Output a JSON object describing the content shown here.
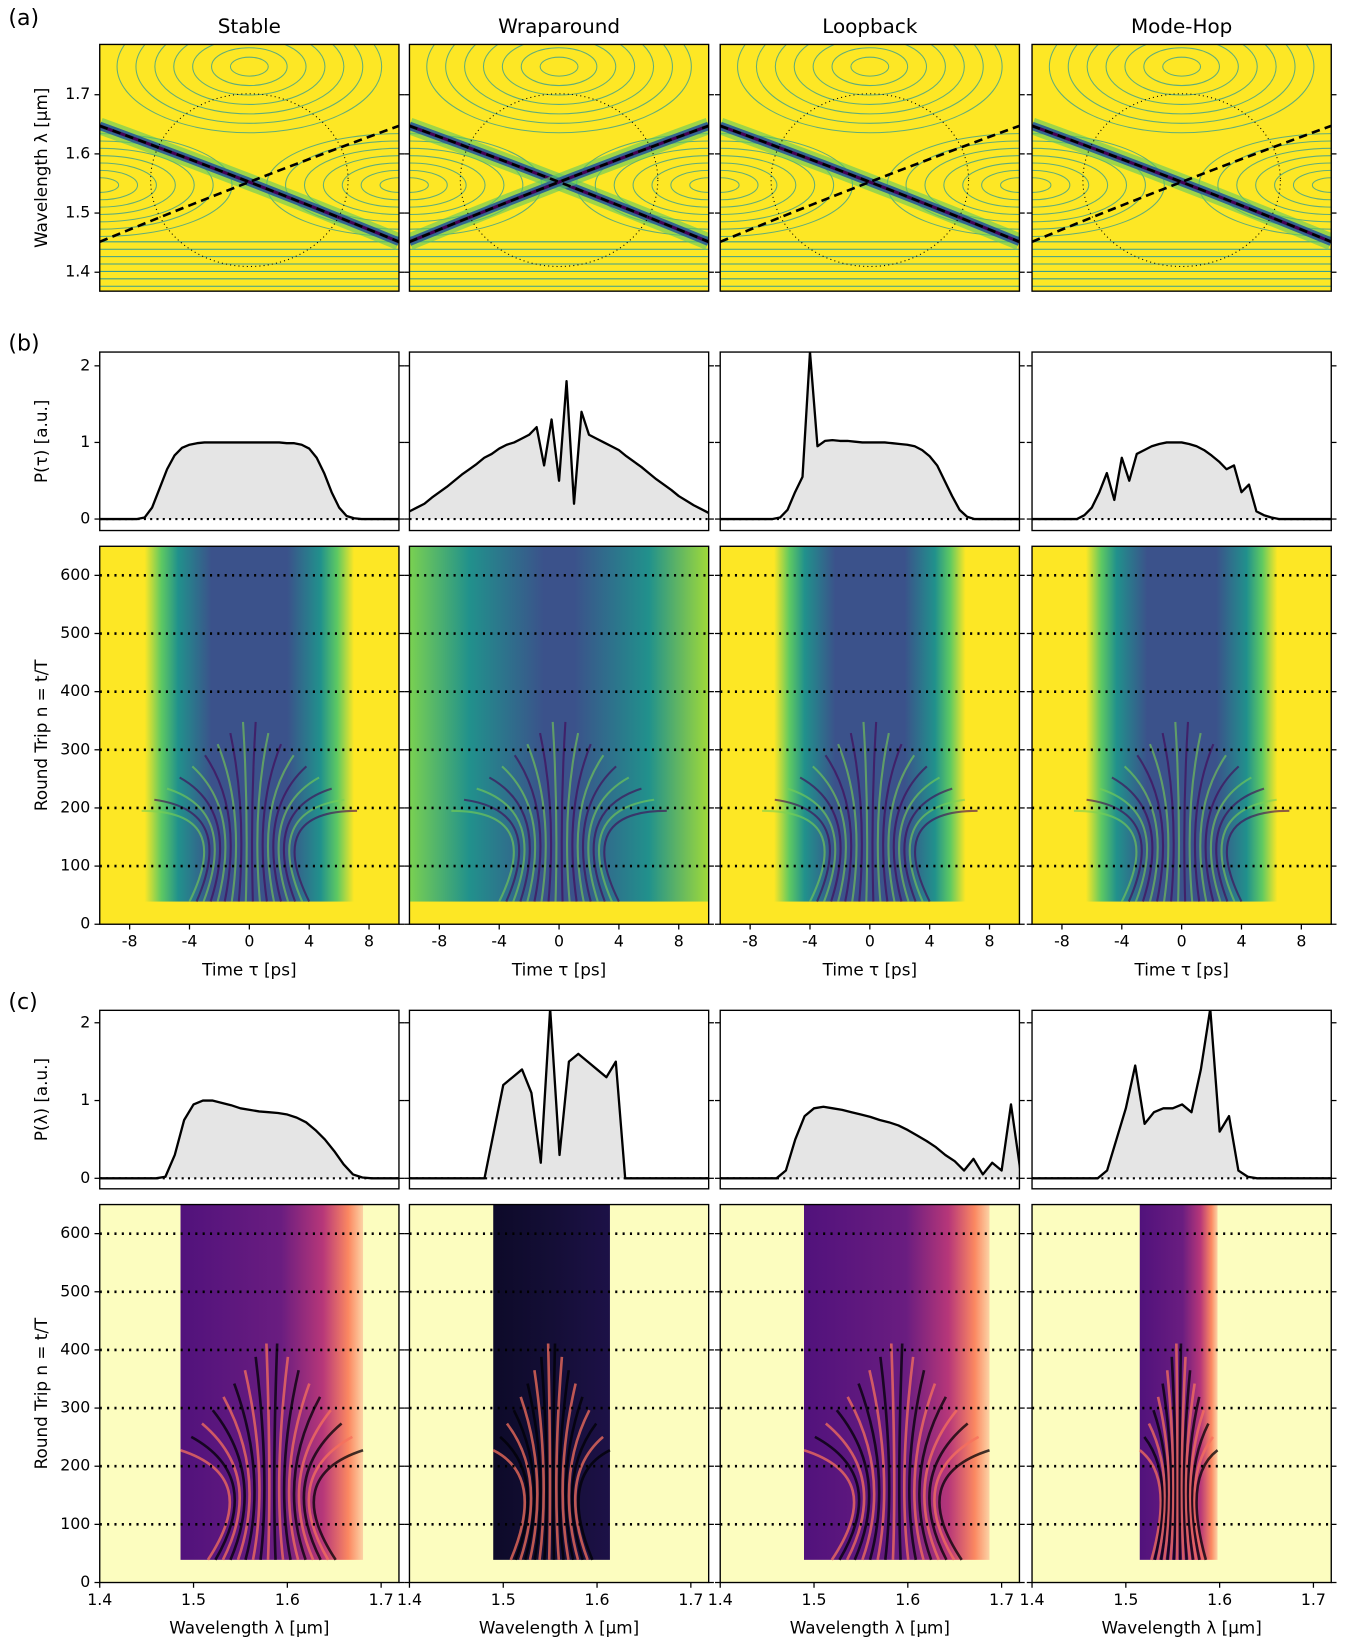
{
  "chart_data": [
    {
      "type": "heatmap",
      "label": "(a)",
      "titles": [
        "Stable",
        "Wraparound",
        "Loopback",
        "Mode-Hop"
      ],
      "ylabel": "Wavelength λ [μm]",
      "ylim": [
        1.368,
        1.785
      ],
      "yticks": [
        1.4,
        1.5,
        1.6,
        1.7
      ],
      "colormap": "viridis"
    },
    {
      "type": "line",
      "label": "(b)",
      "ylabel": "P(τ) [a.u.]",
      "xlim": [
        -10,
        10
      ],
      "ylim": [
        -0.15,
        2.18
      ],
      "yticks": [
        0,
        1,
        2
      ],
      "color": "#000000",
      "fill": "#e5e5e5",
      "x": [
        -10,
        -9.5,
        -9,
        -8.5,
        -8,
        -7.5,
        -7,
        -6.5,
        -6,
        -5.5,
        -5,
        -4.5,
        -4,
        -3.5,
        -3,
        -2.5,
        -2,
        -1.5,
        -1,
        -0.5,
        0,
        0.5,
        1,
        1.5,
        2,
        2.5,
        3,
        3.5,
        4,
        4.5,
        5,
        5.5,
        6,
        6.5,
        7,
        7.5,
        8,
        8.5,
        9,
        9.5,
        10
      ],
      "series": [
        {
          "values": [
            0,
            0,
            0,
            0,
            0,
            0,
            0.02,
            0.15,
            0.4,
            0.65,
            0.83,
            0.93,
            0.97,
            0.99,
            1,
            1,
            1,
            1,
            1,
            1,
            1,
            1,
            1,
            1,
            1,
            0.99,
            0.99,
            0.97,
            0.92,
            0.8,
            0.6,
            0.35,
            0.15,
            0.04,
            0.01,
            0,
            0,
            0,
            0,
            0,
            0
          ]
        },
        {
          "values": [
            0.1,
            0.15,
            0.2,
            0.28,
            0.35,
            0.42,
            0.5,
            0.58,
            0.65,
            0.72,
            0.8,
            0.85,
            0.92,
            0.97,
            1.0,
            1.05,
            1.1,
            1.2,
            0.7,
            1.3,
            0.5,
            1.8,
            0.2,
            1.4,
            1.1,
            1.05,
            1.0,
            0.95,
            0.9,
            0.82,
            0.75,
            0.68,
            0.6,
            0.52,
            0.45,
            0.38,
            0.3,
            0.24,
            0.18,
            0.13,
            0.08
          ]
        },
        {
          "values": [
            0,
            0,
            0,
            0,
            0,
            0,
            0,
            0,
            0.02,
            0.12,
            0.35,
            0.55,
            2.18,
            0.95,
            1.02,
            1.03,
            1.02,
            1.02,
            1.01,
            1,
            1,
            1,
            1,
            0.99,
            0.98,
            0.97,
            0.95,
            0.9,
            0.82,
            0.7,
            0.5,
            0.3,
            0.12,
            0.03,
            0,
            0,
            0,
            0,
            0,
            0,
            0
          ]
        },
        {
          "values": [
            0,
            0,
            0,
            0,
            0,
            0,
            0,
            0.05,
            0.15,
            0.35,
            0.6,
            0.25,
            0.8,
            0.5,
            0.85,
            0.9,
            0.95,
            0.98,
            1,
            1,
            1,
            0.98,
            0.95,
            0.9,
            0.83,
            0.75,
            0.65,
            0.7,
            0.35,
            0.45,
            0.1,
            0.05,
            0.02,
            0,
            0,
            0,
            0,
            0,
            0,
            0,
            0
          ]
        }
      ]
    },
    {
      "type": "heatmap",
      "ylabel": "Round Trip n = t/T",
      "xlabel": "Time τ [ps]",
      "xlim": [
        -10,
        10
      ],
      "xticks": [
        -8,
        -4,
        0,
        4,
        8
      ],
      "ylim": [
        0,
        650
      ],
      "yticks": [
        0,
        100,
        200,
        300,
        400,
        500,
        600
      ],
      "grid": true,
      "colormap": "viridis"
    },
    {
      "type": "line",
      "label": "(c)",
      "ylabel": "P(λ) [a.u.]",
      "xlim": [
        1.4,
        1.719
      ],
      "ylim": [
        -0.135,
        2.16
      ],
      "yticks": [
        0,
        1,
        2
      ],
      "color": "#000000",
      "fill": "#e5e5e5",
      "x": [
        1.4,
        1.41,
        1.42,
        1.43,
        1.44,
        1.45,
        1.46,
        1.47,
        1.48,
        1.49,
        1.5,
        1.51,
        1.52,
        1.53,
        1.54,
        1.55,
        1.56,
        1.57,
        1.58,
        1.59,
        1.6,
        1.61,
        1.62,
        1.63,
        1.64,
        1.65,
        1.66,
        1.67,
        1.68,
        1.69,
        1.7,
        1.71,
        1.72
      ],
      "series": [
        {
          "values": [
            0,
            0,
            0,
            0,
            0,
            0,
            0,
            0.02,
            0.3,
            0.75,
            0.95,
            1,
            1,
            0.97,
            0.94,
            0.9,
            0.88,
            0.86,
            0.85,
            0.84,
            0.82,
            0.78,
            0.72,
            0.62,
            0.5,
            0.35,
            0.18,
            0.05,
            0.01,
            0,
            0,
            0,
            0
          ]
        },
        {
          "values": [
            0,
            0,
            0,
            0,
            0,
            0,
            0,
            0,
            0,
            0.6,
            1.2,
            1.3,
            1.4,
            1.1,
            0.2,
            2.18,
            0.3,
            1.5,
            1.6,
            1.5,
            1.4,
            1.3,
            1.5,
            0,
            0,
            0,
            0,
            0,
            0,
            0,
            0,
            0,
            0
          ]
        },
        {
          "values": [
            0,
            0,
            0,
            0,
            0,
            0,
            0,
            0.1,
            0.5,
            0.8,
            0.9,
            0.92,
            0.9,
            0.88,
            0.85,
            0.82,
            0.79,
            0.75,
            0.72,
            0.68,
            0.62,
            0.55,
            0.48,
            0.4,
            0.3,
            0.22,
            0.1,
            0.25,
            0.05,
            0.2,
            0.1,
            0.95,
            0.1
          ]
        },
        {
          "values": [
            0,
            0,
            0,
            0,
            0,
            0,
            0,
            0,
            0.1,
            0.5,
            0.9,
            1.45,
            0.7,
            0.85,
            0.9,
            0.9,
            0.95,
            0.85,
            1.4,
            2.18,
            0.6,
            0.8,
            0.1,
            0.02,
            0,
            0,
            0,
            0,
            0,
            0,
            0,
            0,
            0
          ]
        }
      ]
    },
    {
      "type": "heatmap",
      "ylabel": "Round Trip n = t/T",
      "xlabel": "Wavelength λ [μm]",
      "xlim": [
        1.4,
        1.719
      ],
      "xticks": [
        1.4,
        1.5,
        1.6,
        1.7
      ],
      "ylim": [
        0,
        650
      ],
      "yticks": [
        0,
        100,
        200,
        300,
        400,
        500,
        600
      ],
      "grid": true,
      "colormap": "magma"
    }
  ]
}
